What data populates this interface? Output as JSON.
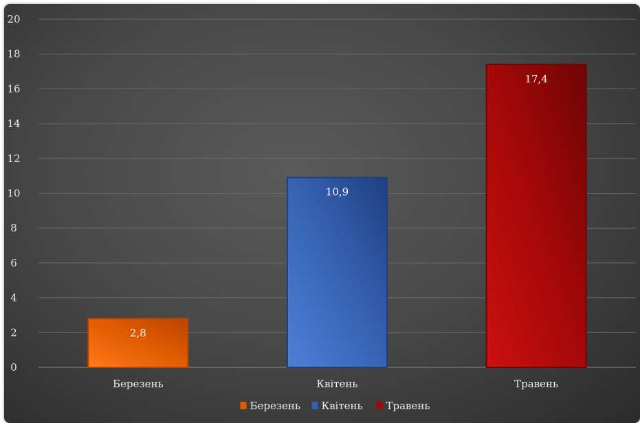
{
  "chart_data": {
    "type": "bar",
    "categories": [
      "Березень",
      "Квітень",
      "Травень"
    ],
    "values": [
      2.8,
      10.9,
      17.4
    ],
    "data_labels": [
      "2,8",
      "10,9",
      "17,4"
    ],
    "title": "",
    "xlabel": "",
    "ylabel": "",
    "ylim": [
      0,
      20
    ],
    "yticks": [
      0,
      2,
      4,
      6,
      8,
      10,
      12,
      14,
      16,
      18,
      20
    ],
    "grid": true,
    "legend": {
      "position": "bottom",
      "entries": [
        "Березень",
        "Квітень",
        "Травень"
      ]
    },
    "colors": {
      "Березень": [
        "#ff7a1a",
        "#e05a00",
        "#b84400"
      ],
      "Квітень": [
        "#4f7fd6",
        "#3560b0",
        "#1f3f80"
      ],
      "Травень": [
        "#cc1010",
        "#a00808",
        "#6e0505"
      ]
    },
    "background": "#4a4a4a",
    "gridline_color": "#6a6a6a"
  }
}
